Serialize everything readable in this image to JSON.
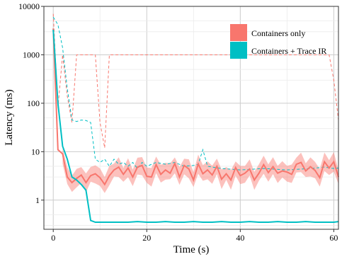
{
  "chart_data": {
    "type": "line",
    "xlabel": "Time (s)",
    "ylabel": "Latency (ms)",
    "xlim": [
      -2,
      61
    ],
    "ylim": [
      0.25,
      10000
    ],
    "yscale": "log",
    "grid": true,
    "legend_position": "top-right",
    "x_ticks": [
      0,
      20,
      40,
      60
    ],
    "x_tick_labels": [
      "0",
      "20",
      "40",
      "60"
    ],
    "y_ticks": [
      1,
      10,
      100,
      1000,
      10000
    ],
    "y_tick_labels": [
      "1",
      "10",
      "100",
      "1000",
      "10000"
    ],
    "series": [
      {
        "name": "Containers only",
        "color": "#f8766d",
        "mean": [
          [
            0,
            3500
          ],
          [
            1,
            11
          ],
          [
            2,
            9
          ],
          [
            3,
            3
          ],
          [
            4,
            2.3
          ],
          [
            5,
            2.8
          ],
          [
            6,
            3.3
          ],
          [
            7,
            2.3
          ],
          [
            8,
            3.2
          ],
          [
            9,
            3.5
          ],
          [
            10,
            2.9
          ],
          [
            11,
            2.1
          ],
          [
            12,
            3.2
          ],
          [
            13,
            4.2
          ],
          [
            14,
            4.8
          ],
          [
            15,
            3.4
          ],
          [
            16,
            4.6
          ],
          [
            17,
            3.0
          ],
          [
            18,
            4.8
          ],
          [
            19,
            5.2
          ],
          [
            20,
            3.1
          ],
          [
            21,
            3.0
          ],
          [
            22,
            5.4
          ],
          [
            23,
            3.4
          ],
          [
            24,
            4.2
          ],
          [
            25,
            3.6
          ],
          [
            26,
            5.7
          ],
          [
            27,
            3.0
          ],
          [
            28,
            5.2
          ],
          [
            29,
            4.4
          ],
          [
            30,
            2.6
          ],
          [
            31,
            5.6
          ],
          [
            32,
            3.5
          ],
          [
            33,
            4.2
          ],
          [
            34,
            3.3
          ],
          [
            35,
            5.0
          ],
          [
            36,
            2.7
          ],
          [
            37,
            3.5
          ],
          [
            38,
            2.6
          ],
          [
            39,
            4.7
          ],
          [
            40,
            3.2
          ],
          [
            41,
            3.6
          ],
          [
            42,
            4.4
          ],
          [
            43,
            2.6
          ],
          [
            44,
            3.6
          ],
          [
            45,
            5.4
          ],
          [
            46,
            3.7
          ],
          [
            47,
            4.9
          ],
          [
            48,
            3.6
          ],
          [
            49,
            4.0
          ],
          [
            50,
            3.8
          ],
          [
            51,
            3.4
          ],
          [
            52,
            5.5
          ],
          [
            53,
            6.0
          ],
          [
            54,
            4.0
          ],
          [
            55,
            4.9
          ],
          [
            56,
            4.1
          ],
          [
            57,
            2.9
          ],
          [
            58,
            6.2
          ],
          [
            59,
            4.6
          ],
          [
            60,
            6.2
          ],
          [
            61,
            3.0
          ]
        ],
        "max": [
          [
            0,
            7000
          ],
          [
            1,
            80
          ],
          [
            2,
            1000
          ],
          [
            3,
            140
          ],
          [
            4,
            40
          ],
          [
            5,
            1000
          ],
          [
            6,
            1000
          ],
          [
            7,
            1000
          ],
          [
            8,
            1000
          ],
          [
            9,
            1000
          ],
          [
            10,
            40
          ],
          [
            11,
            12
          ],
          [
            12,
            1000
          ],
          [
            13,
            1000
          ],
          [
            20,
            1000
          ],
          [
            30,
            1000
          ],
          [
            40,
            1000
          ],
          [
            50,
            1000
          ],
          [
            58,
            1000
          ],
          [
            59,
            1000
          ],
          [
            60,
            300
          ],
          [
            61,
            45
          ]
        ]
      },
      {
        "name": "Containers + Trace IR",
        "color": "#00bfc4",
        "mean": [
          [
            0,
            3300
          ],
          [
            1,
            100
          ],
          [
            2,
            13
          ],
          [
            3,
            7
          ],
          [
            4,
            3
          ],
          [
            5,
            2.6
          ],
          [
            6,
            2.1
          ],
          [
            7,
            1.6
          ],
          [
            8,
            0.38
          ],
          [
            9,
            0.35
          ],
          [
            10,
            0.35
          ],
          [
            12,
            0.35
          ],
          [
            14,
            0.35
          ],
          [
            16,
            0.35
          ],
          [
            18,
            0.36
          ],
          [
            20,
            0.35
          ],
          [
            22,
            0.35
          ],
          [
            24,
            0.36
          ],
          [
            26,
            0.35
          ],
          [
            28,
            0.35
          ],
          [
            30,
            0.36
          ],
          [
            32,
            0.35
          ],
          [
            34,
            0.35
          ],
          [
            36,
            0.36
          ],
          [
            38,
            0.35
          ],
          [
            40,
            0.35
          ],
          [
            42,
            0.36
          ],
          [
            44,
            0.35
          ],
          [
            46,
            0.35
          ],
          [
            48,
            0.36
          ],
          [
            50,
            0.35
          ],
          [
            52,
            0.35
          ],
          [
            54,
            0.36
          ],
          [
            56,
            0.35
          ],
          [
            58,
            0.35
          ],
          [
            60,
            0.35
          ],
          [
            61,
            0.36
          ]
        ],
        "max": [
          [
            0,
            6000
          ],
          [
            1,
            4200
          ],
          [
            2,
            1400
          ],
          [
            3,
            200
          ],
          [
            4,
            45
          ],
          [
            5,
            42
          ],
          [
            6,
            45
          ],
          [
            7,
            44
          ],
          [
            8,
            40
          ],
          [
            9,
            7
          ],
          [
            10,
            6
          ],
          [
            11,
            7
          ],
          [
            12,
            5
          ],
          [
            13,
            7
          ],
          [
            14,
            5.5
          ],
          [
            15,
            6
          ],
          [
            16,
            5
          ],
          [
            17,
            6
          ],
          [
            18,
            4.5
          ],
          [
            19,
            6
          ],
          [
            20,
            5
          ],
          [
            22,
            6
          ],
          [
            24,
            5.5
          ],
          [
            26,
            6
          ],
          [
            28,
            5
          ],
          [
            30,
            5.2
          ],
          [
            31,
            5.5
          ],
          [
            32,
            11
          ],
          [
            33,
            5
          ],
          [
            34,
            4.8
          ],
          [
            36,
            4.5
          ],
          [
            40,
            4.2
          ],
          [
            45,
            4.5
          ],
          [
            50,
            4.2
          ],
          [
            55,
            4.5
          ],
          [
            58,
            4.8
          ],
          [
            60,
            4.5
          ],
          [
            61,
            4.6
          ]
        ]
      }
    ]
  }
}
